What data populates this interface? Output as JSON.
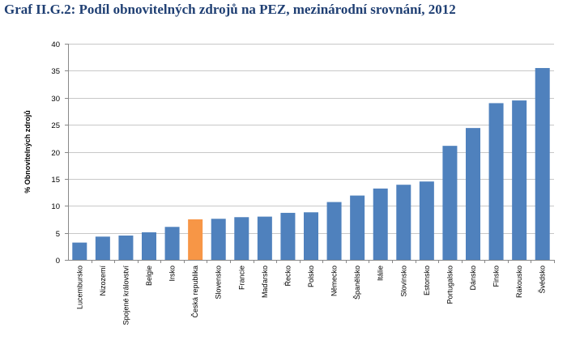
{
  "header": {
    "title": "Graf II.G.2: Podíl obnovitelných zdrojů na PEZ, mezinárodní srovnání, 2012"
  },
  "colors": {
    "bar": "#4f81bd",
    "highlight": "#f79646",
    "grid": "#c8c8c8",
    "title": "#1f3f73"
  },
  "chart_data": {
    "type": "bar",
    "title": "Graf II.G.2: Podíl obnovitelných zdrojů na PEZ, mezinárodní srovnání, 2012",
    "xlabel": "",
    "ylabel": "% Obnovitelných zdrojů",
    "ylim": [
      0,
      40
    ],
    "yticks": [
      0,
      5,
      10,
      15,
      20,
      25,
      30,
      35,
      40
    ],
    "grid": true,
    "categories": [
      "Lucembursko",
      "Nizozemí",
      "Spojené království",
      "Belgie",
      "Irsko",
      "Česká republika",
      "Slovensko",
      "Francie",
      "Maďarsko",
      "Řecko",
      "Polsko",
      "Německo",
      "Španělsko",
      "Itálie",
      "Slovinsko",
      "Estonsko",
      "Portugalsko",
      "Dánsko",
      "Finsko",
      "Rakousko",
      "Švédsko"
    ],
    "values": [
      3.2,
      4.3,
      4.5,
      5.1,
      6.1,
      7.5,
      7.6,
      7.9,
      8.0,
      8.7,
      8.8,
      10.7,
      11.9,
      13.2,
      13.9,
      14.5,
      21.1,
      24.4,
      29.0,
      29.5,
      35.5
    ],
    "highlight_category": "Česká republika"
  }
}
